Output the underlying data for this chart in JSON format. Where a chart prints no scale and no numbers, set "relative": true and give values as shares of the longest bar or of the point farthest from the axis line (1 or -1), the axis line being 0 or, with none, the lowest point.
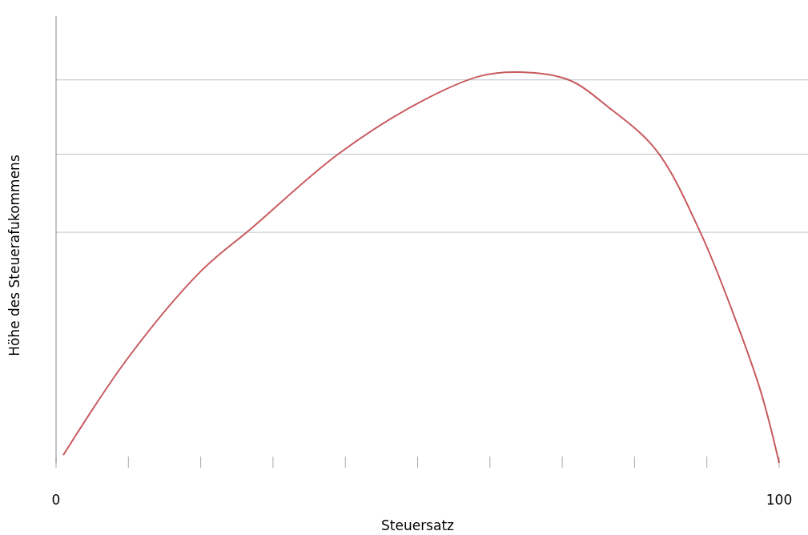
{
  "chart_data": {
    "type": "line",
    "xlabel": "Steuersatz",
    "ylabel": "Höhe des Steuerafukommens",
    "relative": true,
    "x": [
      1,
      10,
      20,
      27,
      39,
      50,
      58.7,
      64.2,
      70.9,
      76.4,
      83,
      89.1,
      94.1,
      97.5,
      100
    ],
    "series": [
      {
        "color": "#c85a5e",
        "values": [
          0.02,
          0.27,
          0.49,
          0.6,
          0.79,
          0.92,
          0.99,
          1,
          0.98,
          0.91,
          0.8,
          0.59,
          0.36,
          0.18,
          0
        ]
      }
    ],
    "xlim": [
      0,
      100
    ],
    "xticks": [
      0,
      {
        "value": 10,
        "label": null
      },
      {
        "value": 20,
        "label": null
      },
      {
        "value": 30,
        "label": null
      },
      {
        "value": 40,
        "label": null
      },
      {
        "value": 50,
        "label": null
      },
      {
        "value": 60,
        "label": null
      },
      {
        "value": 70,
        "label": null
      },
      {
        "value": 80,
        "label": null
      },
      {
        "value": 90,
        "label": null
      },
      100
    ],
    "ref_lines": [
      {
        "axis": "y",
        "value": 0.98,
        "color": "#b8c4cc"
      },
      {
        "axis": "y",
        "value": 0.79,
        "color": "#b8c4cc"
      },
      {
        "axis": "y",
        "value": 0.59,
        "color": "#b8c4cc"
      }
    ],
    "marker": "none",
    "line_style": "solid"
  }
}
